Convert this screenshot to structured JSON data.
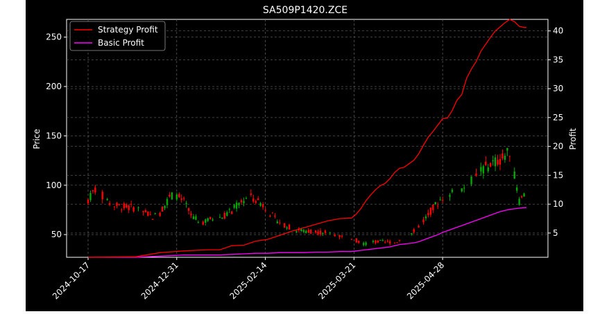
{
  "chart_data": {
    "type": "candlestick+line",
    "title": "SA509P1420.ZCE",
    "xlabel": "",
    "ylabel_left": "Price",
    "ylabel_right": "Profit",
    "x_tick_labels": [
      "2024-10-17",
      "2024-12-31",
      "2025-02-14",
      "2025-03-21",
      "2025-04-28"
    ],
    "x_tick_index": [
      0,
      37,
      74,
      111,
      148
    ],
    "y_left_ticks": [
      50,
      100,
      150,
      200,
      250
    ],
    "y_left_range": [
      27,
      268
    ],
    "y_right_ticks": [
      5,
      10,
      15,
      20,
      25,
      30,
      35,
      40
    ],
    "y_right_range": [
      0.8,
      42.0
    ],
    "n_bars": 184,
    "grid": true,
    "legend_position": "top-left",
    "colors": {
      "background": "#000000",
      "figure": "#ffffff",
      "text": "#ffffff",
      "grid": "#666666",
      "up": "#00aa00",
      "down": "#ff0000",
      "strategy": "#ff0000",
      "basic": "#ff00ff"
    },
    "candles_note": "approximate daily OHLC read from chart",
    "price_path": [
      [
        0,
        85
      ],
      [
        3,
        96
      ],
      [
        10,
        80
      ],
      [
        15,
        78
      ],
      [
        20,
        77
      ],
      [
        24,
        72
      ],
      [
        27,
        68
      ],
      [
        30,
        72
      ],
      [
        33,
        84
      ],
      [
        36,
        92
      ],
      [
        40,
        83
      ],
      [
        44,
        66
      ],
      [
        48,
        63
      ],
      [
        52,
        66
      ],
      [
        56,
        68
      ],
      [
        60,
        74
      ],
      [
        64,
        84
      ],
      [
        68,
        88
      ],
      [
        70,
        86
      ],
      [
        74,
        78
      ],
      [
        78,
        66
      ],
      [
        82,
        60
      ],
      [
        86,
        55
      ],
      [
        90,
        54
      ],
      [
        95,
        53
      ],
      [
        100,
        52
      ],
      [
        104,
        50
      ],
      [
        108,
        45
      ],
      [
        112,
        43
      ],
      [
        114,
        40
      ],
      [
        116,
        37
      ],
      [
        118,
        38
      ],
      [
        120,
        37
      ],
      [
        122,
        36
      ],
      [
        124,
        34
      ],
      [
        126,
        34
      ],
      [
        128,
        32
      ],
      [
        130,
        32
      ],
      [
        132,
        31
      ],
      [
        136,
        33
      ],
      [
        140,
        37
      ],
      [
        144,
        42
      ],
      [
        148,
        46
      ],
      [
        152,
        49
      ],
      [
        156,
        50
      ],
      [
        160,
        54
      ],
      [
        164,
        58
      ],
      [
        168,
        64
      ],
      [
        172,
        68
      ],
      [
        176,
        72
      ],
      [
        180,
        84
      ],
      [
        183,
        94
      ]
    ],
    "price_path_shift": [
      [
        0,
        0
      ],
      [
        70,
        0
      ],
      [
        110,
        0
      ],
      [
        128,
        10
      ],
      [
        136,
        20
      ],
      [
        148,
        42
      ],
      [
        156,
        46
      ],
      [
        164,
        57
      ],
      [
        172,
        58
      ],
      [
        176,
        62
      ],
      [
        180,
        0
      ],
      [
        183,
        0
      ]
    ],
    "strategy_profit": [
      [
        0,
        0.8
      ],
      [
        20,
        0.9
      ],
      [
        30,
        1.6
      ],
      [
        40,
        1.9
      ],
      [
        50,
        2.1
      ],
      [
        55,
        2.1
      ],
      [
        60,
        2.8
      ],
      [
        65,
        2.9
      ],
      [
        70,
        3.6
      ],
      [
        75,
        3.9
      ],
      [
        80,
        4.6
      ],
      [
        85,
        5.3
      ],
      [
        90,
        5.9
      ],
      [
        95,
        6.5
      ],
      [
        100,
        7.1
      ],
      [
        105,
        7.5
      ],
      [
        110,
        7.6
      ],
      [
        112,
        8.3
      ],
      [
        114,
        9.3
      ],
      [
        116,
        10.6
      ],
      [
        118,
        11.6
      ],
      [
        120,
        12.5
      ],
      [
        122,
        13.2
      ],
      [
        124,
        13.6
      ],
      [
        126,
        14.4
      ],
      [
        128,
        15.5
      ],
      [
        130,
        16.2
      ],
      [
        132,
        16.4
      ],
      [
        134,
        17.0
      ],
      [
        136,
        17.6
      ],
      [
        138,
        18.7
      ],
      [
        140,
        20.2
      ],
      [
        142,
        21.6
      ],
      [
        144,
        22.6
      ],
      [
        146,
        23.7
      ],
      [
        148,
        24.8
      ],
      [
        150,
        24.9
      ],
      [
        152,
        26.2
      ],
      [
        154,
        28.0
      ],
      [
        156,
        29.0
      ],
      [
        158,
        31.8
      ],
      [
        160,
        33.4
      ],
      [
        162,
        34.7
      ],
      [
        164,
        36.5
      ],
      [
        166,
        37.7
      ],
      [
        168,
        38.9
      ],
      [
        170,
        40.0
      ],
      [
        172,
        40.7
      ],
      [
        174,
        41.4
      ],
      [
        176,
        42.0
      ],
      [
        178,
        41.6
      ],
      [
        180,
        40.8
      ],
      [
        182,
        40.6
      ],
      [
        183,
        40.6
      ]
    ],
    "basic_profit": [
      [
        0,
        0.8
      ],
      [
        20,
        0.8
      ],
      [
        30,
        1.0
      ],
      [
        40,
        1.2
      ],
      [
        50,
        1.2
      ],
      [
        55,
        1.2
      ],
      [
        60,
        1.3
      ],
      [
        65,
        1.4
      ],
      [
        70,
        1.5
      ],
      [
        75,
        1.5
      ],
      [
        80,
        1.6
      ],
      [
        85,
        1.6
      ],
      [
        90,
        1.6
      ],
      [
        95,
        1.7
      ],
      [
        100,
        1.7
      ],
      [
        105,
        1.8
      ],
      [
        110,
        1.8
      ],
      [
        112,
        1.9
      ],
      [
        114,
        2.0
      ],
      [
        116,
        2.1
      ],
      [
        118,
        2.2
      ],
      [
        120,
        2.3
      ],
      [
        122,
        2.4
      ],
      [
        124,
        2.5
      ],
      [
        126,
        2.6
      ],
      [
        128,
        2.8
      ],
      [
        130,
        3.0
      ],
      [
        132,
        3.1
      ],
      [
        134,
        3.2
      ],
      [
        136,
        3.3
      ],
      [
        138,
        3.5
      ],
      [
        140,
        3.8
      ],
      [
        142,
        4.1
      ],
      [
        144,
        4.4
      ],
      [
        146,
        4.7
      ],
      [
        148,
        5.1
      ],
      [
        150,
        5.4
      ],
      [
        152,
        5.7
      ],
      [
        154,
        6.0
      ],
      [
        156,
        6.3
      ],
      [
        158,
        6.6
      ],
      [
        160,
        6.9
      ],
      [
        162,
        7.2
      ],
      [
        164,
        7.5
      ],
      [
        166,
        7.8
      ],
      [
        168,
        8.1
      ],
      [
        170,
        8.4
      ],
      [
        172,
        8.7
      ],
      [
        174,
        8.9
      ],
      [
        176,
        9.1
      ],
      [
        178,
        9.2
      ],
      [
        180,
        9.3
      ],
      [
        182,
        9.4
      ],
      [
        183,
        9.4
      ]
    ],
    "legend": [
      {
        "label": "Strategy Profit",
        "color": "#ff0000"
      },
      {
        "label": "Basic Profit",
        "color": "#ff00ff"
      }
    ]
  }
}
